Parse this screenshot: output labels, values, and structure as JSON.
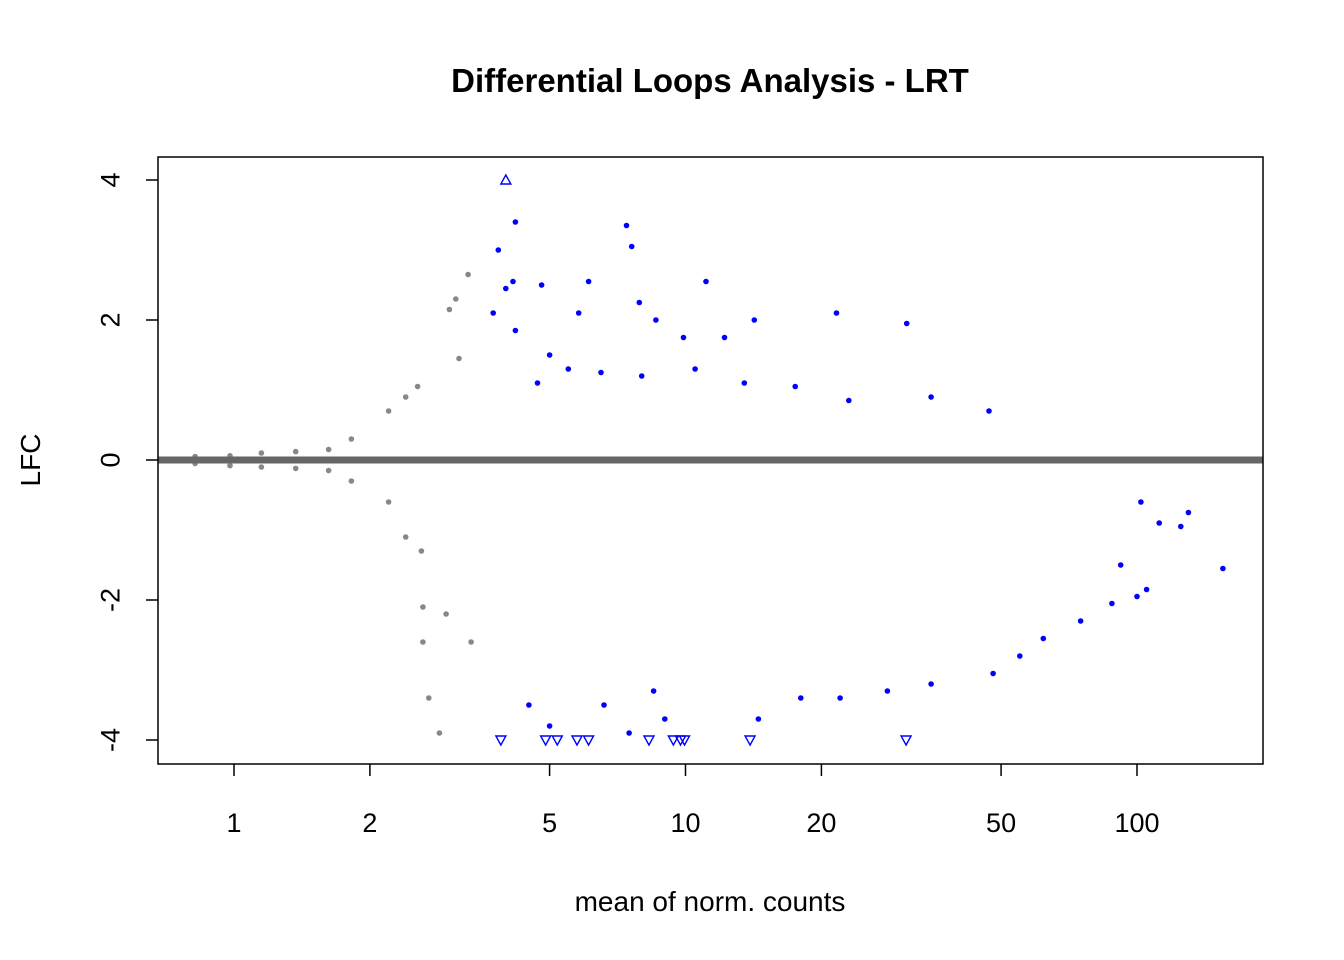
{
  "chart_data": {
    "type": "scatter",
    "title": "Differential Loops Analysis - LRT",
    "xlabel": "mean of norm. counts",
    "ylabel": "LFC",
    "x_scale": "log",
    "xlim": [
      0.7,
      185
    ],
    "ylim": [
      -4.3,
      4.3
    ],
    "x_ticks": [
      1,
      2,
      5,
      10,
      20,
      50,
      100
    ],
    "x_tick_labels": [
      "1",
      "2",
      "5",
      "10",
      "20",
      "50",
      "100"
    ],
    "y_ticks": [
      -4,
      -2,
      0,
      2,
      4
    ],
    "y_tick_labels": [
      "-4",
      "-2",
      "0",
      "2",
      "4"
    ],
    "reference_line": {
      "y": 0,
      "color": "#666666"
    },
    "grid": false,
    "colors": {
      "not_significant": "#888888",
      "significant": "#0000ff"
    },
    "out_of_range_markers": {
      "above": [
        {
          "x": 4.0,
          "y": 4
        }
      ],
      "below": [
        {
          "x": 3.9,
          "y": -4
        },
        {
          "x": 4.9,
          "y": -4
        },
        {
          "x": 5.2,
          "y": -4
        },
        {
          "x": 5.75,
          "y": -4
        },
        {
          "x": 6.1,
          "y": -4
        },
        {
          "x": 8.3,
          "y": -4
        },
        {
          "x": 9.4,
          "y": -4
        },
        {
          "x": 9.75,
          "y": -4
        },
        {
          "x": 9.95,
          "y": -4
        },
        {
          "x": 13.9,
          "y": -4
        },
        {
          "x": 30.8,
          "y": -4
        }
      ]
    },
    "series": [
      {
        "name": "",
        "color": "#888888",
        "points": [
          [
            0.82,
            0.05
          ],
          [
            0.82,
            -0.05
          ],
          [
            0.98,
            0.06
          ],
          [
            0.98,
            -0.08
          ],
          [
            1.15,
            0.1
          ],
          [
            1.15,
            -0.1
          ],
          [
            1.37,
            0.12
          ],
          [
            1.37,
            -0.12
          ],
          [
            1.62,
            0.15
          ],
          [
            1.62,
            -0.15
          ],
          [
            1.82,
            0.3
          ],
          [
            1.82,
            -0.3
          ],
          [
            2.2,
            0.7
          ],
          [
            2.2,
            -0.6
          ],
          [
            2.4,
            0.9
          ],
          [
            2.4,
            -1.1
          ],
          [
            2.55,
            1.05
          ],
          [
            2.6,
            -1.3
          ],
          [
            2.62,
            -2.1
          ],
          [
            2.62,
            -2.6
          ],
          [
            2.7,
            -3.4
          ],
          [
            2.85,
            -3.9
          ],
          [
            3.0,
            2.15
          ],
          [
            3.1,
            2.3
          ],
          [
            3.15,
            1.45
          ],
          [
            3.3,
            2.65
          ],
          [
            3.35,
            -2.6
          ],
          [
            2.95,
            -2.2
          ]
        ]
      },
      {
        "name": "",
        "color": "#0000ff",
        "points": [
          [
            3.75,
            2.1
          ],
          [
            3.85,
            3.0
          ],
          [
            4.0,
            2.45
          ],
          [
            4.15,
            2.55
          ],
          [
            4.2,
            3.4
          ],
          [
            4.2,
            1.85
          ],
          [
            4.8,
            2.5
          ],
          [
            5.0,
            1.5
          ],
          [
            5.8,
            2.1
          ],
          [
            6.1,
            2.55
          ],
          [
            7.4,
            3.35
          ],
          [
            7.6,
            3.05
          ],
          [
            7.9,
            2.25
          ],
          [
            8.6,
            2.0
          ],
          [
            9.9,
            1.75
          ],
          [
            11.1,
            2.55
          ],
          [
            12.2,
            1.75
          ],
          [
            14.2,
            2.0
          ],
          [
            21.6,
            2.1
          ],
          [
            30.9,
            1.95
          ],
          [
            4.7,
            1.1
          ],
          [
            5.5,
            1.3
          ],
          [
            6.5,
            1.25
          ],
          [
            8.0,
            1.2
          ],
          [
            10.5,
            1.3
          ],
          [
            13.5,
            1.1
          ],
          [
            17.5,
            1.05
          ],
          [
            23.0,
            0.85
          ],
          [
            35.0,
            0.9
          ],
          [
            47.0,
            0.7
          ],
          [
            4.5,
            -3.5
          ],
          [
            5.0,
            -3.8
          ],
          [
            6.6,
            -3.5
          ],
          [
            7.5,
            -3.9
          ],
          [
            9.0,
            -3.7
          ],
          [
            14.5,
            -3.7
          ],
          [
            8.5,
            -3.3
          ],
          [
            18.0,
            -3.4
          ],
          [
            22.0,
            -3.4
          ],
          [
            28.0,
            -3.3
          ],
          [
            35.0,
            -3.2
          ],
          [
            48.0,
            -3.05
          ],
          [
            55.0,
            -2.8
          ],
          [
            62.0,
            -2.55
          ],
          [
            75.0,
            -2.3
          ],
          [
            88.0,
            -2.05
          ],
          [
            100.0,
            -1.95
          ],
          [
            105.0,
            -1.85
          ],
          [
            92.0,
            -1.5
          ],
          [
            102.0,
            -0.6
          ],
          [
            112.0,
            -0.9
          ],
          [
            125.0,
            -0.95
          ],
          [
            130.0,
            -0.75
          ],
          [
            155.0,
            -1.55
          ]
        ]
      }
    ]
  }
}
